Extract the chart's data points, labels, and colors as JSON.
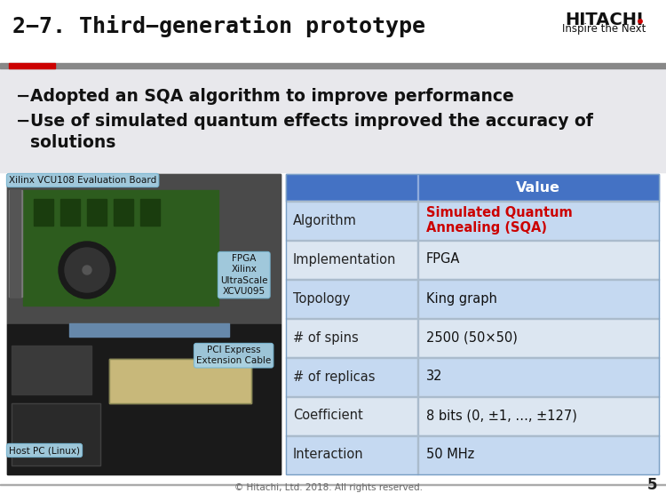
{
  "title": "2−7. Third−generation prototype",
  "bg_color": "#ffffff",
  "header_bar_color": "#cc0000",
  "header_separator_color": "#888888",
  "header_red_block_color": "#cc0000",
  "bullet_bg": "#e8e8ec",
  "bullet1": "Adopted an SQA algorithm to improve performance",
  "bullet2a": "Use of simulated quantum effects improved the accuracy of",
  "bullet2b": "solutions",
  "table_header_bg": "#4472c4",
  "table_header_text": "#ffffff",
  "table_row_bg1": "#c5d9f1",
  "table_row_bg2": "#dce6f1",
  "table_border_color": "#7a9fc4",
  "table_value_col": "Value",
  "table_rows": [
    [
      "Algorithm",
      "Simulated Quantum\nAnnealing (SQA)",
      "#cc0000",
      true
    ],
    [
      "Implementation",
      "FPGA",
      "#111111",
      false
    ],
    [
      "Topology",
      "King graph",
      "#111111",
      false
    ],
    [
      "# of spins",
      "2500 (50×50)",
      "#111111",
      false
    ],
    [
      "# of replicas",
      "32",
      "#111111",
      false
    ],
    [
      "Coefficient",
      "8 bits (0, ±1, …, ±127)",
      "#111111",
      false
    ],
    [
      "Interaction",
      "50 MHz",
      "#111111",
      false
    ]
  ],
  "img_label1": "Xilinx VCU108 Evaluation Board",
  "img_label2": "FPGA\nXilinx\nUltraScale\nXCVU095",
  "img_label3": "PCI Express\nExtension Cable",
  "img_label4": "Host PC (Linux)",
  "img_label_bg": "#6ab0d4",
  "footer_text": "© Hitachi, Ltd. 2018. All rights reserved.",
  "page_num": "5",
  "hitachi_text1": "HITACHI",
  "hitachi_text2": "Inspire the Next"
}
